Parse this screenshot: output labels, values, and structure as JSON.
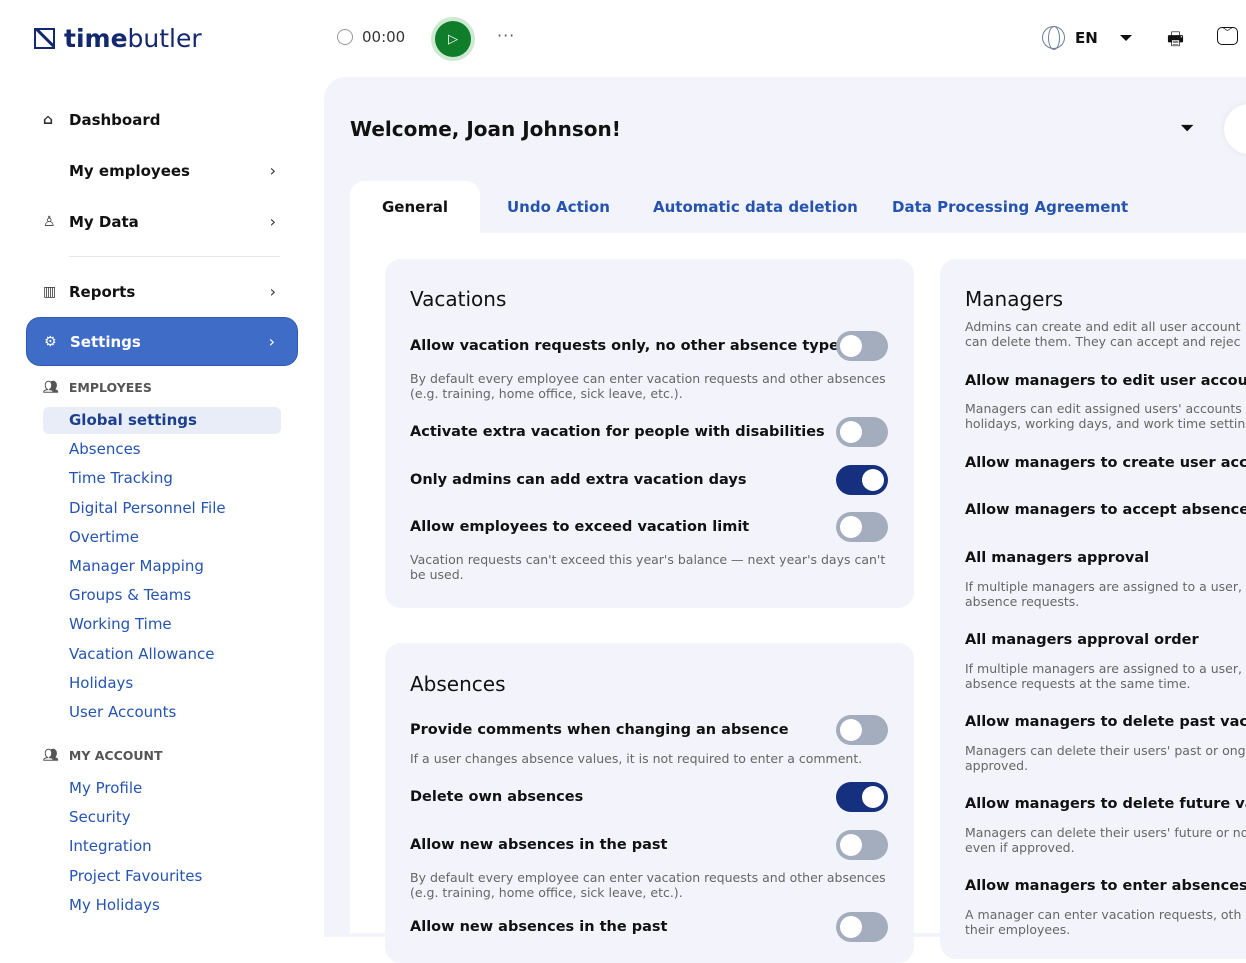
{
  "header": {
    "logo_bold": "time",
    "logo_light": "butler",
    "timer": "00:00",
    "more": "···",
    "language": "EN"
  },
  "sidebar": {
    "items": [
      {
        "label": "Dashboard",
        "icon": "home-icon"
      },
      {
        "label": "My employees"
      },
      {
        "label": "My Data",
        "icon": "user-icon"
      },
      {
        "label": "Reports",
        "icon": "chart-icon"
      },
      {
        "label": "Settings",
        "icon": "gear-icon"
      }
    ],
    "employees_section": "EMPLOYEES",
    "employees": [
      "Global settings",
      "Absences",
      "Time Tracking",
      "Digital Personnel File",
      "Overtime",
      "Manager Mapping",
      "Groups & Teams",
      "Working Time",
      "Vacation Allowance",
      "Holidays",
      "User Accounts"
    ],
    "account_section": "MY ACCOUNT",
    "account": [
      "My Profile",
      "Security",
      "Integration",
      "Project Favourites",
      "My Holidays"
    ]
  },
  "main": {
    "welcome": "Welcome, Joan Johnson!",
    "tabs": [
      "General",
      "Undo Action",
      "Automatic data deletion",
      "Data Processing Agreement"
    ],
    "vacations": {
      "title": "Vacations",
      "rows": [
        {
          "label": "Allow vacation requests only, no other absence types",
          "on": false,
          "desc": "By default every employee can enter vacation requests and other absences (e.g. training, home office, sick leave, etc.)."
        },
        {
          "label": "Activate extra vacation for people with disabilities",
          "on": false
        },
        {
          "label": "Only admins can add extra vacation days",
          "on": true
        },
        {
          "label": "Allow employees to exceed vacation limit",
          "on": false,
          "desc": "Vacation requests can't exceed this year's balance — next year's days can't be used."
        }
      ]
    },
    "absences": {
      "title": "Absences",
      "rows": [
        {
          "label": "Provide comments when changing an absence",
          "on": false,
          "desc": "If a user changes absence values, it is not required to enter a comment."
        },
        {
          "label": "Delete own absences",
          "on": true
        },
        {
          "label": "Allow new absences in the past",
          "on": false,
          "desc": "By default every employee can enter vacation requests and other absences (e.g. training, home office, sick leave, etc.)."
        },
        {
          "label": "Allow new absences in the past",
          "on": false
        }
      ]
    },
    "managers": {
      "title": "Managers",
      "desc": [
        "Admins can create and edit all user account",
        "can delete them. They can accept and rejec"
      ],
      "rows": [
        {
          "label": "Allow managers to edit user accoun",
          "desc": [
            "Managers can edit assigned users' accounts",
            "holidays, working days, and work time setting"
          ]
        },
        {
          "label": "Allow managers to create user acco"
        },
        {
          "label": "Allow managers to accept absence r"
        },
        {
          "label": "All managers approval",
          "desc": [
            "If multiple managers are assigned to a user,",
            "absence requests."
          ]
        },
        {
          "label": "All managers approval order",
          "desc": [
            "If multiple managers are assigned to a user,",
            "absence requests at the same time."
          ]
        },
        {
          "label": "Allow managers to delete past vaca",
          "desc": [
            "Managers can delete their users' past or ong",
            "approved."
          ]
        },
        {
          "label": "Allow managers to delete future vac",
          "desc": [
            "Managers can delete their users' future or no",
            "even if approved."
          ]
        },
        {
          "label": "Allow managers to enter absences o",
          "desc": [
            "A manager can enter vacation requests, oth",
            "their employees."
          ]
        }
      ]
    }
  },
  "colors": {
    "accent": "#3f6cc6",
    "toggle_on": "#14307f",
    "toggle_off": "#a3adbd",
    "play": "#0f7d2a",
    "link": "#2554b0"
  }
}
